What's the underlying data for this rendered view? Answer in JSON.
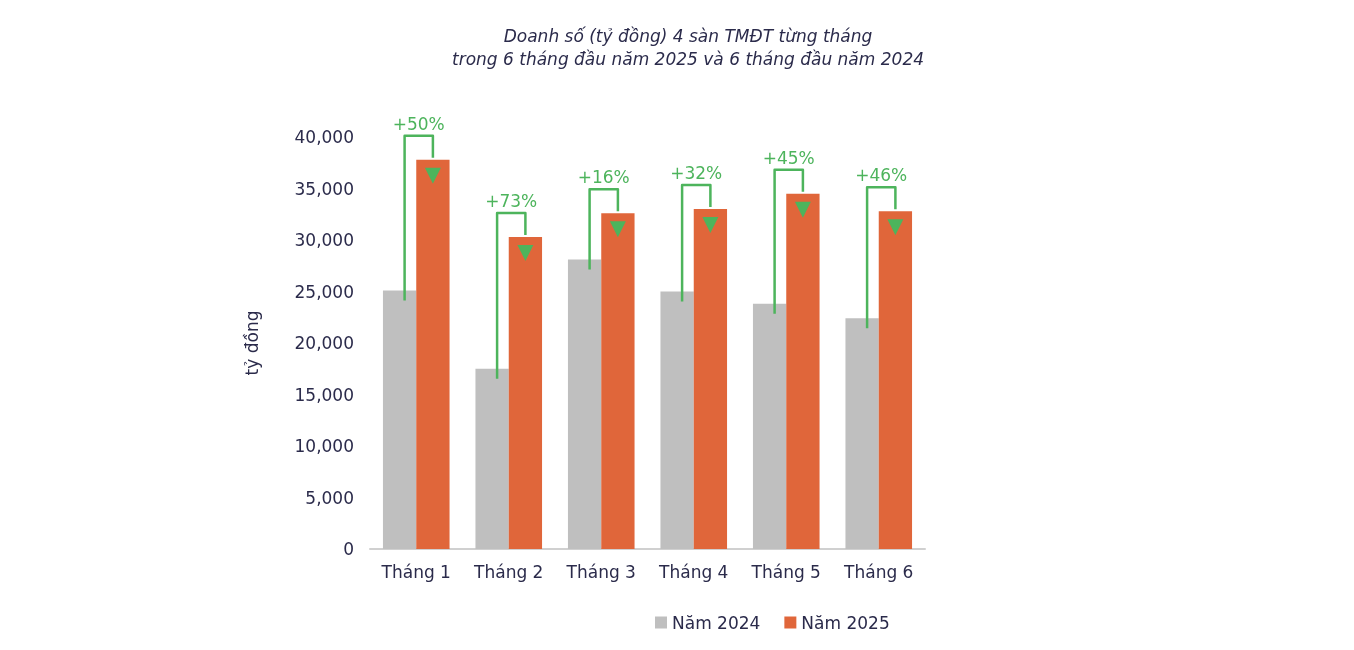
{
  "chart_data": {
    "type": "bar",
    "title": "Doanh số (tỷ đồng) 4 sàn TMĐT từng tháng",
    "subtitle": "trong 6 tháng đầu năm 2025 và 6 tháng đầu năm 2024",
    "ylabel": "tỷ đồng",
    "categories": [
      "Tháng 1",
      "Tháng 2",
      "Tháng 3",
      "Tháng 4",
      "Tháng 5",
      "Tháng 6"
    ],
    "series": [
      {
        "name": "Năm 2024",
        "color": "#bfbfbf",
        "values": [
          25100,
          17500,
          28100,
          25000,
          23800,
          22400
        ]
      },
      {
        "name": "Năm 2025",
        "color": "#e0663a",
        "values": [
          37800,
          30300,
          32600,
          33000,
          34500,
          32800
        ]
      }
    ],
    "ylim": [
      0,
      40000
    ],
    "yticks": [
      {
        "value": 0,
        "label": "0"
      },
      {
        "value": 5000,
        "label": "5,000"
      },
      {
        "value": 10000,
        "label": "10,000"
      },
      {
        "value": 15000,
        "label": "15,000"
      },
      {
        "value": 20000,
        "label": "20,000"
      },
      {
        "value": 25000,
        "label": "25,000"
      },
      {
        "value": 30000,
        "label": "30,000"
      },
      {
        "value": 35000,
        "label": "35,000"
      },
      {
        "value": 40000,
        "label": "40,000"
      }
    ],
    "grid": false,
    "legend": "bottom",
    "annotations": [
      "+50%",
      "+73%",
      "+16%",
      "+32%",
      "+45%",
      "+46%"
    ]
  }
}
